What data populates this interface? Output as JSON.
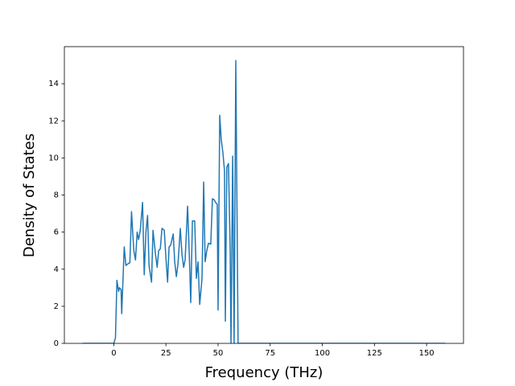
{
  "chart_data": {
    "type": "line",
    "x_label": "Frequency (THz)",
    "y_label": "Density of States",
    "color": "#1f77b4",
    "x": [
      -15,
      0,
      0.8,
      1.5,
      2.3,
      2.7,
      3.5,
      3.8,
      5,
      5.8,
      6.9,
      7.7,
      8.5,
      9.6,
      10.4,
      11.2,
      11.9,
      12.7,
      13.8,
      14.6,
      15.4,
      16.2,
      16.9,
      18.1,
      18.8,
      20,
      20.8,
      21.5,
      22.3,
      23.1,
      24.2,
      25,
      25.8,
      26.5,
      27.3,
      28.5,
      29.2,
      30,
      30.8,
      31.9,
      32.7,
      33.5,
      34.2,
      35.4,
      36.2,
      36.9,
      37.7,
      38.8,
      39.6,
      40.4,
      41.2,
      42.3,
      43.1,
      43.8,
      44.6,
      45.4,
      46.5,
      47.3,
      48.1,
      48.8,
      49.6,
      50,
      50.8,
      51.5,
      52.3,
      53.1,
      53.5,
      54.2,
      55,
      55.8,
      56.2,
      57,
      57.7,
      58.5,
      59.6,
      159
    ],
    "values": [
      0,
      0,
      0.3,
      3.4,
      2.8,
      3.0,
      2.9,
      1.6,
      5.2,
      4.2,
      4.3,
      4.35,
      7.1,
      5.0,
      4.5,
      6.0,
      5.6,
      6.1,
      7.6,
      3.7,
      6.0,
      6.9,
      4.2,
      3.3,
      6.1,
      4.8,
      4.1,
      5.0,
      5.1,
      6.2,
      6.1,
      4.6,
      3.3,
      5.2,
      5.3,
      5.9,
      4.4,
      3.6,
      4.3,
      6.2,
      4.8,
      4.1,
      4.5,
      7.4,
      4.8,
      2.2,
      6.6,
      6.6,
      3.5,
      4.4,
      2.1,
      3.5,
      8.7,
      4.4,
      5.0,
      5.4,
      5.35,
      7.8,
      7.75,
      7.6,
      7.5,
      1.8,
      12.3,
      11,
      10.3,
      9.3,
      1.2,
      9.5,
      9.7,
      5.0,
      0,
      10.1,
      0,
      15.25,
      0,
      0
    ],
    "xlim": [
      -23.7,
      167.7
    ],
    "ylim": [
      0,
      16.0
    ],
    "xticks": [
      0,
      25,
      50,
      75,
      100,
      125,
      150
    ],
    "yticks": [
      0,
      2,
      4,
      6,
      8,
      10,
      12,
      14
    ]
  }
}
